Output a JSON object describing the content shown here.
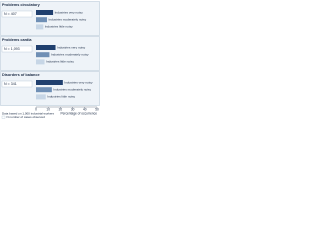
{
  "chart_data": [
    {
      "type": "bar",
      "title": "Problems circulatory",
      "n_label": "N = 407",
      "categories": [
        "Industries very noisy",
        "Industries moderately noisy",
        "Industries little noisy"
      ],
      "values": [
        14,
        9,
        6
      ],
      "colors": [
        "#1f3f6e",
        "#6f8fb5",
        "#c7d6e6"
      ],
      "xlim": [
        0,
        50
      ]
    },
    {
      "type": "bar",
      "title": "Problems cardia",
      "n_label": "N = 1,093",
      "categories": [
        "Industries very noisy",
        "Industries moderately noisy",
        "Industries little noisy"
      ],
      "values": [
        16,
        11,
        7
      ],
      "colors": [
        "#1f3f6e",
        "#6f8fb5",
        "#c7d6e6"
      ],
      "xlim": [
        0,
        50
      ]
    },
    {
      "type": "bar",
      "title": "Disorders of balance",
      "n_label": "N = 341",
      "categories": [
        "Industries very noisy",
        "Industries moderately noisy",
        "Industries little noisy"
      ],
      "values": [
        22,
        13,
        8
      ],
      "colors": [
        "#1f3f6e",
        "#6f8fb5",
        "#c7d6e6"
      ],
      "xlim": [
        0,
        50
      ],
      "xticks": [
        0,
        10,
        20,
        30,
        40,
        50
      ],
      "xlabel": "Percentage of occurrence",
      "note": "Data based on 1,000 industrial workers",
      "legend_note": "N number of cases observed"
    }
  ]
}
